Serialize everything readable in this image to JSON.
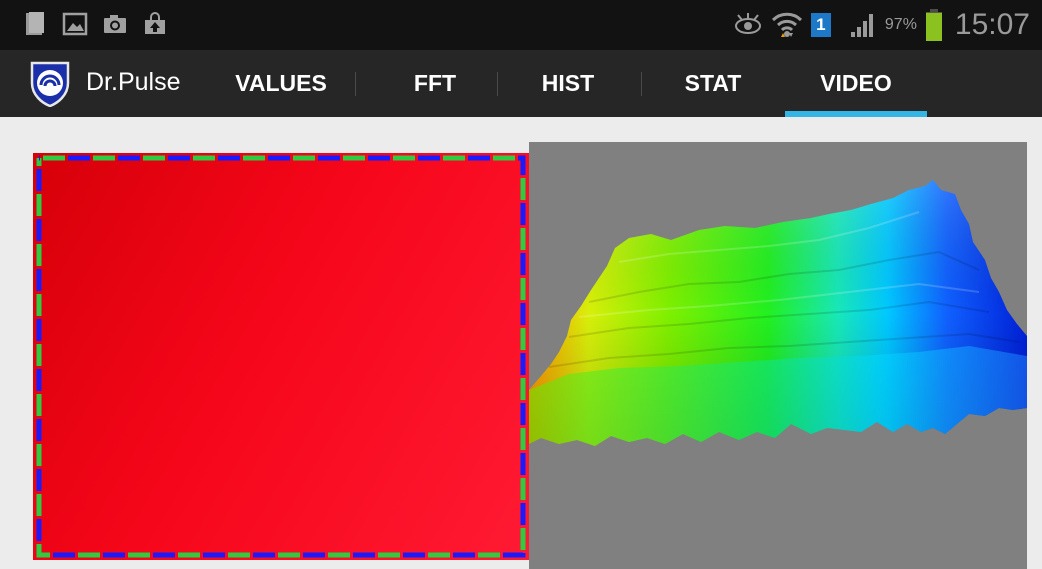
{
  "status_bar": {
    "notification_icons": [
      "document-icon",
      "image-icon",
      "camera-icon",
      "upload-bag-icon"
    ],
    "right_icons": [
      "eye-icon",
      "wifi-icon",
      "sim-badge-icon",
      "signal-icon",
      "battery-icon"
    ],
    "sim_badge": "1",
    "battery_percent": "97%",
    "battery_level": 0.97,
    "time": "15:07"
  },
  "action_bar": {
    "app_title": "Dr.Pulse",
    "tabs": [
      {
        "label": "VALUES",
        "selected": false
      },
      {
        "label": "FFT",
        "selected": false
      },
      {
        "label": "HIST",
        "selected": false
      },
      {
        "label": "STAT",
        "selected": false
      },
      {
        "label": "VIDEO",
        "selected": true
      }
    ]
  },
  "colors": {
    "accent": "#33b5e5",
    "video_red": "#ff0015",
    "roi_green": "#2ecc40",
    "roi_blue": "#1a1aff",
    "surface_bg": "#808080"
  }
}
